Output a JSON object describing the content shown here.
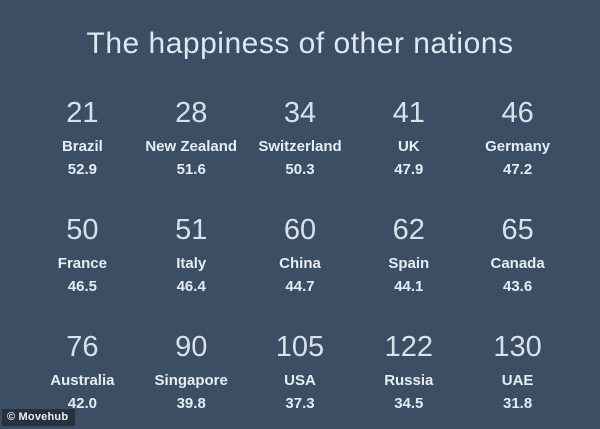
{
  "title": "The happiness of other nations",
  "watermark": {
    "label": "© Movehub"
  },
  "colors": {
    "background": "#3b4e63",
    "title_text": "#dfe8f0",
    "rank_text": "#d7e1ea",
    "label_text": "#e5ecf3",
    "watermark_bg": "#273241",
    "watermark_text": "#e9eff5"
  },
  "cells": [
    {
      "rank": "21",
      "country": "Brazil",
      "score": "52.9"
    },
    {
      "rank": "28",
      "country": "New Zealand",
      "score": "51.6"
    },
    {
      "rank": "34",
      "country": "Switzerland",
      "score": "50.3"
    },
    {
      "rank": "41",
      "country": "UK",
      "score": "47.9"
    },
    {
      "rank": "46",
      "country": "Germany",
      "score": "47.2"
    },
    {
      "rank": "50",
      "country": "France",
      "score": "46.5"
    },
    {
      "rank": "51",
      "country": "Italy",
      "score": "46.4"
    },
    {
      "rank": "60",
      "country": "China",
      "score": "44.7"
    },
    {
      "rank": "62",
      "country": "Spain",
      "score": "44.1"
    },
    {
      "rank": "65",
      "country": "Canada",
      "score": "43.6"
    },
    {
      "rank": "76",
      "country": "Australia",
      "score": "42.0"
    },
    {
      "rank": "90",
      "country": "Singapore",
      "score": "39.8"
    },
    {
      "rank": "105",
      "country": "USA",
      "score": "37.3"
    },
    {
      "rank": "122",
      "country": "Russia",
      "score": "34.5"
    },
    {
      "rank": "130",
      "country": "UAE",
      "score": "31.8"
    }
  ],
  "chart_data": {
    "type": "table",
    "title": "The happiness of other nations",
    "columns": [
      "rank",
      "country",
      "score"
    ],
    "rows": [
      [
        21,
        "Brazil",
        52.9
      ],
      [
        28,
        "New Zealand",
        51.6
      ],
      [
        34,
        "Switzerland",
        50.3
      ],
      [
        41,
        "UK",
        47.9
      ],
      [
        46,
        "Germany",
        47.2
      ],
      [
        50,
        "France",
        46.5
      ],
      [
        51,
        "Italy",
        46.4
      ],
      [
        60,
        "China",
        44.7
      ],
      [
        62,
        "Spain",
        44.1
      ],
      [
        65,
        "Canada",
        43.6
      ],
      [
        76,
        "Australia",
        42.0
      ],
      [
        90,
        "Singapore",
        39.8
      ],
      [
        105,
        "USA",
        37.3
      ],
      [
        122,
        "Russia",
        34.5
      ],
      [
        130,
        "UAE",
        31.8
      ]
    ],
    "layout": "3 rows x 5 columns grid, rank above country above score",
    "annotations": [
      "© Movehub"
    ]
  }
}
